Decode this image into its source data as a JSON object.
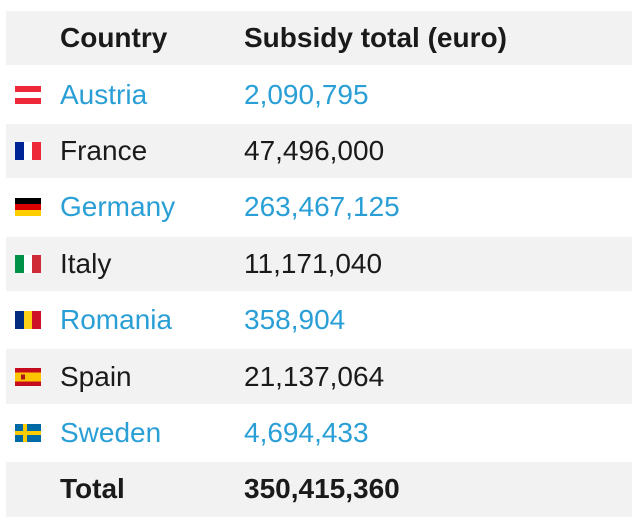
{
  "table": {
    "headers": {
      "country": "Country",
      "value": "Subsidy total (euro)"
    },
    "rows": [
      {
        "flag": "flag-austria-icon",
        "country": "Austria",
        "value": "2,090,795",
        "linked": true
      },
      {
        "flag": "flag-france-icon",
        "country": "France",
        "value": "47,496,000",
        "linked": false
      },
      {
        "flag": "flag-germany-icon",
        "country": "Germany",
        "value": "263,467,125",
        "linked": true
      },
      {
        "flag": "flag-italy-icon",
        "country": "Italy",
        "value": "11,171,040",
        "linked": false
      },
      {
        "flag": "flag-romania-icon",
        "country": "Romania",
        "value": "358,904",
        "linked": true
      },
      {
        "flag": "flag-spain-icon",
        "country": "Spain",
        "value": "21,137,064",
        "linked": false
      },
      {
        "flag": "flag-sweden-icon",
        "country": "Sweden",
        "value": "4,694,433",
        "linked": true
      }
    ],
    "total": {
      "label": "Total",
      "value": "350,415,360"
    }
  },
  "colors": {
    "link": "#2a9fd6",
    "text": "#1a1a1a",
    "row_shade": "#f2f2f2"
  }
}
